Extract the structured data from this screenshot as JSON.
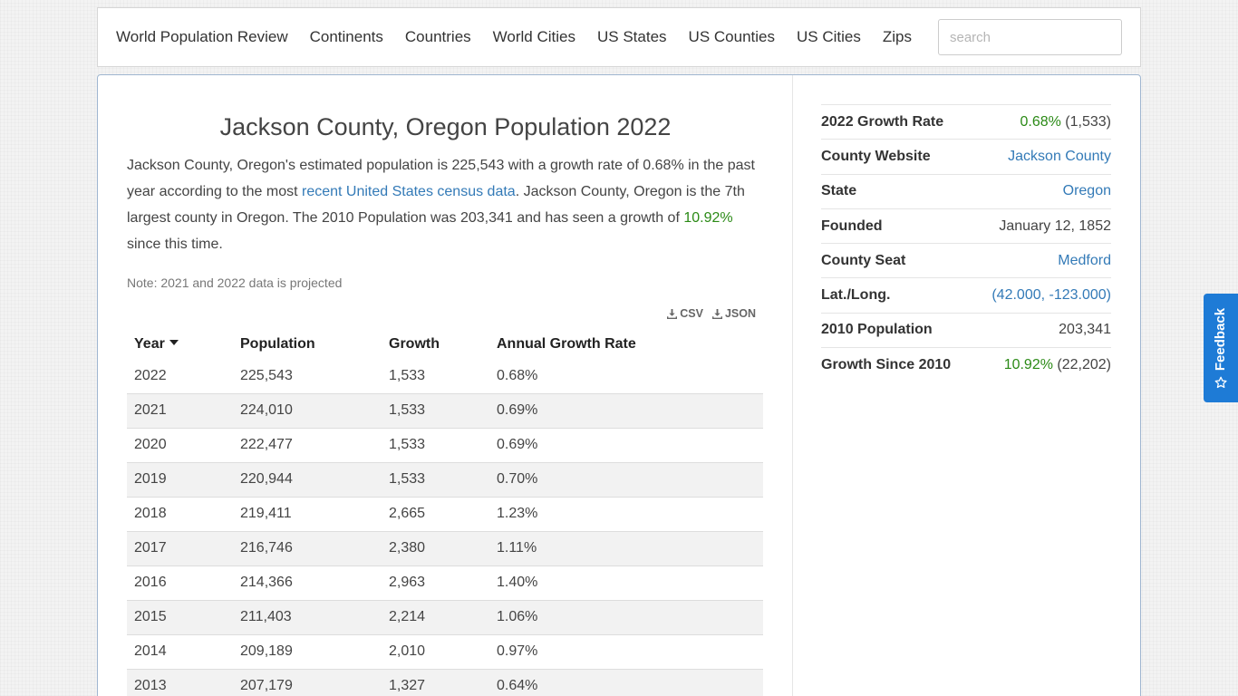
{
  "nav": {
    "links": [
      "World Population Review",
      "Continents",
      "Countries",
      "World Cities",
      "US States",
      "US Counties",
      "US Cities",
      "Zips"
    ],
    "search_placeholder": "search"
  },
  "main": {
    "title": "Jackson County, Oregon Population 2022",
    "intro": {
      "part1": "Jackson County, Oregon's estimated population is 225,543 with a growth rate of 0.68% in the past year according to the most ",
      "link": "recent United States census data",
      "part2": ". Jackson County, Oregon is the 7th largest county in Oregon. The 2010 Population was 203,341 and has seen a growth of ",
      "growth": "10.92%",
      "part3": " since this time."
    },
    "note": "Note: 2021 and 2022 data is projected",
    "downloads": {
      "csv": "CSV",
      "json": "JSON"
    },
    "table": {
      "headers": [
        "Year",
        "Population",
        "Growth",
        "Annual Growth Rate"
      ],
      "rows": [
        [
          "2022",
          "225,543",
          "1,533",
          "0.68%"
        ],
        [
          "2021",
          "224,010",
          "1,533",
          "0.69%"
        ],
        [
          "2020",
          "222,477",
          "1,533",
          "0.69%"
        ],
        [
          "2019",
          "220,944",
          "1,533",
          "0.70%"
        ],
        [
          "2018",
          "219,411",
          "2,665",
          "1.23%"
        ],
        [
          "2017",
          "216,746",
          "2,380",
          "1.11%"
        ],
        [
          "2016",
          "214,366",
          "2,963",
          "1.40%"
        ],
        [
          "2015",
          "211,403",
          "2,214",
          "1.06%"
        ],
        [
          "2014",
          "209,189",
          "2,010",
          "0.97%"
        ],
        [
          "2013",
          "207,179",
          "1,327",
          "0.64%"
        ]
      ]
    }
  },
  "facts": {
    "growth_rate_label": "2022 Growth Rate",
    "growth_rate_pct": "0.68%",
    "growth_rate_abs": "(1,533)",
    "website_label": "County Website",
    "website_value": "Jackson County",
    "state_label": "State",
    "state_value": "Oregon",
    "founded_label": "Founded",
    "founded_value": "January 12, 1852",
    "seat_label": "County Seat",
    "seat_value": "Medford",
    "latlong_label": "Lat./Long.",
    "latlong_value": "(42.000, -123.000)",
    "pop2010_label": "2010 Population",
    "pop2010_value": "203,341",
    "since2010_label": "Growth Since 2010",
    "since2010_pct": "10.92%",
    "since2010_abs": "(22,202)"
  },
  "feedback": {
    "label": "Feedback"
  },
  "colors": {
    "link": "#337ab7",
    "growth_green": "#2b8a16",
    "feedback_bg": "#1e7bd6"
  },
  "icons": [
    "download-icon",
    "star-icon",
    "sort-caret-icon"
  ]
}
